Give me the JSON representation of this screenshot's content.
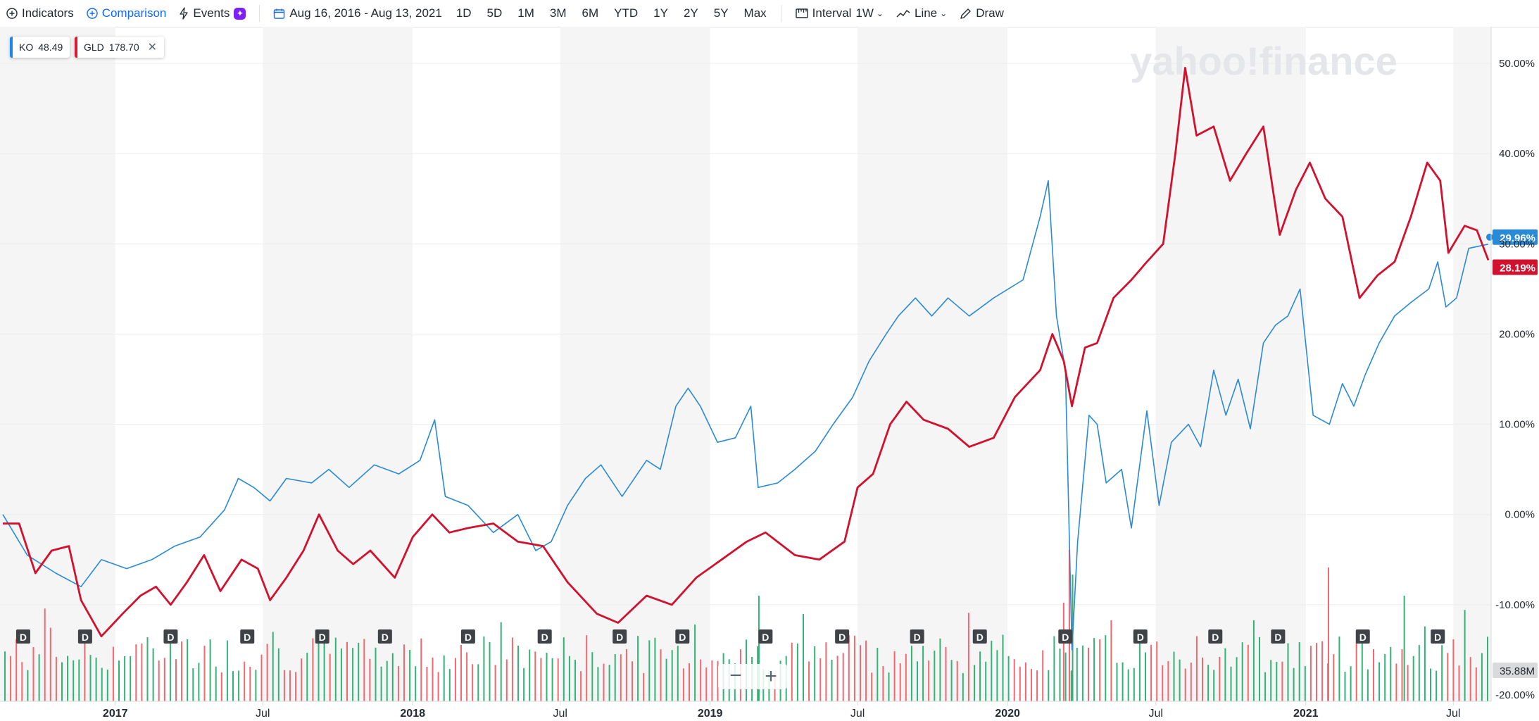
{
  "toolbar": {
    "indicators_label": "Indicators",
    "comparison_label": "Comparison",
    "events_label": "Events",
    "date_range": "Aug 16, 2016 - Aug 13, 2021",
    "ranges": [
      "1D",
      "5D",
      "1M",
      "3M",
      "6M",
      "YTD",
      "1Y",
      "2Y",
      "5Y",
      "Max"
    ],
    "interval_label": "Interval",
    "interval_value": "1W",
    "chart_type_label": "Line",
    "draw_label": "Draw"
  },
  "legend": [
    {
      "symbol": "KO",
      "value": "48.49",
      "color": "#1e88e5",
      "removable": false
    },
    {
      "symbol": "GLD",
      "value": "178.70",
      "color": "#d81b34",
      "removable": true
    }
  ],
  "watermark": "yahoo!finance",
  "colors": {
    "ko": "#2a8ad6",
    "gld": "#d0122e",
    "vol_up": "#34b277",
    "vol_down": "#ef6872",
    "band": "#f5f5f5",
    "grid": "#ececec",
    "badge": "#3f4347"
  },
  "zoom": {
    "minus": "−",
    "plus": "+"
  },
  "chart_data": {
    "type": "line",
    "x_start": "2016-08-16",
    "x_end": "2021-08-13",
    "x_tick_labels": [
      {
        "label": "2017",
        "date": "2017-01-01",
        "bold": true
      },
      {
        "label": "Jul",
        "date": "2017-07-01",
        "bold": false
      },
      {
        "label": "2018",
        "date": "2018-01-01",
        "bold": true
      },
      {
        "label": "Jul",
        "date": "2018-07-01",
        "bold": false
      },
      {
        "label": "2019",
        "date": "2019-01-01",
        "bold": true
      },
      {
        "label": "Jul",
        "date": "2019-07-01",
        "bold": false
      },
      {
        "label": "2020",
        "date": "2020-01-01",
        "bold": true
      },
      {
        "label": "Jul",
        "date": "2020-07-01",
        "bold": false
      },
      {
        "label": "2021",
        "date": "2021-01-01",
        "bold": true
      },
      {
        "label": "Jul",
        "date": "2021-07-01",
        "bold": false
      }
    ],
    "y_unit": "%",
    "ylim": [
      -20,
      50
    ],
    "y_tick_labels": [
      "50.00%",
      "40.00%",
      "30.00%",
      "20.00%",
      "10.00%",
      "0.00%",
      "-10.00%",
      "-20.00%"
    ],
    "y_ticks": [
      50,
      40,
      30,
      20,
      10,
      0,
      -10,
      -20
    ],
    "series": [
      {
        "name": "KO",
        "last_label": "29.96%",
        "last_value": 29.96,
        "points": [
          [
            "2016-08-16",
            0.0
          ],
          [
            "2016-09-15",
            -4.5
          ],
          [
            "2016-10-20",
            -6.5
          ],
          [
            "2016-11-20",
            -8.0
          ],
          [
            "2016-12-15",
            -5.0
          ],
          [
            "2017-01-15",
            -6.0
          ],
          [
            "2017-02-15",
            -5.0
          ],
          [
            "2017-03-15",
            -3.5
          ],
          [
            "2017-04-15",
            -2.5
          ],
          [
            "2017-05-15",
            0.5
          ],
          [
            "2017-06-01",
            4.0
          ],
          [
            "2017-06-20",
            3.0
          ],
          [
            "2017-07-10",
            1.5
          ],
          [
            "2017-07-30",
            4.0
          ],
          [
            "2017-08-30",
            3.5
          ],
          [
            "2017-09-20",
            5.0
          ],
          [
            "2017-10-15",
            3.0
          ],
          [
            "2017-11-15",
            5.5
          ],
          [
            "2017-12-15",
            4.5
          ],
          [
            "2018-01-10",
            6.0
          ],
          [
            "2018-01-28",
            10.5
          ],
          [
            "2018-02-10",
            2.0
          ],
          [
            "2018-03-10",
            1.0
          ],
          [
            "2018-04-10",
            -2.0
          ],
          [
            "2018-05-10",
            0.0
          ],
          [
            "2018-06-01",
            -4.0
          ],
          [
            "2018-06-20",
            -3.0
          ],
          [
            "2018-07-10",
            1.0
          ],
          [
            "2018-08-01",
            4.0
          ],
          [
            "2018-08-20",
            5.5
          ],
          [
            "2018-09-15",
            2.0
          ],
          [
            "2018-10-15",
            6.0
          ],
          [
            "2018-11-01",
            5.0
          ],
          [
            "2018-11-20",
            12.0
          ],
          [
            "2018-12-05",
            14.0
          ],
          [
            "2018-12-20",
            12.0
          ],
          [
            "2019-01-10",
            8.0
          ],
          [
            "2019-02-01",
            8.5
          ],
          [
            "2019-02-20",
            12.0
          ],
          [
            "2019-03-01",
            3.0
          ],
          [
            "2019-03-25",
            3.5
          ],
          [
            "2019-04-15",
            5.0
          ],
          [
            "2019-05-10",
            7.0
          ],
          [
            "2019-06-01",
            10.0
          ],
          [
            "2019-06-25",
            13.0
          ],
          [
            "2019-07-15",
            17.0
          ],
          [
            "2019-08-05",
            20.0
          ],
          [
            "2019-08-20",
            22.0
          ],
          [
            "2019-09-10",
            24.0
          ],
          [
            "2019-09-30",
            22.0
          ],
          [
            "2019-10-20",
            24.0
          ],
          [
            "2019-11-15",
            22.0
          ],
          [
            "2019-12-15",
            24.0
          ],
          [
            "2020-01-20",
            26.0
          ],
          [
            "2020-02-10",
            33.0
          ],
          [
            "2020-02-20",
            37.0
          ],
          [
            "2020-03-01",
            22.0
          ],
          [
            "2020-03-12",
            16.0
          ],
          [
            "2020-03-20",
            -15.0
          ],
          [
            "2020-03-27",
            -3.0
          ],
          [
            "2020-04-10",
            11.0
          ],
          [
            "2020-04-20",
            10.0
          ],
          [
            "2020-05-01",
            3.5
          ],
          [
            "2020-05-20",
            5.0
          ],
          [
            "2020-06-01",
            -1.5
          ],
          [
            "2020-06-20",
            11.5
          ],
          [
            "2020-07-05",
            1.0
          ],
          [
            "2020-07-20",
            8.0
          ],
          [
            "2020-08-10",
            10.0
          ],
          [
            "2020-08-25",
            7.5
          ],
          [
            "2020-09-10",
            16.0
          ],
          [
            "2020-09-25",
            11.0
          ],
          [
            "2020-10-10",
            15.0
          ],
          [
            "2020-10-25",
            9.5
          ],
          [
            "2020-11-10",
            19.0
          ],
          [
            "2020-11-25",
            21.0
          ],
          [
            "2020-12-10",
            22.0
          ],
          [
            "2020-12-25",
            25.0
          ],
          [
            "2021-01-10",
            11.0
          ],
          [
            "2021-01-30",
            10.0
          ],
          [
            "2021-02-15",
            14.5
          ],
          [
            "2021-03-01",
            12.0
          ],
          [
            "2021-03-15",
            15.5
          ],
          [
            "2021-04-01",
            19.0
          ],
          [
            "2021-04-20",
            22.0
          ],
          [
            "2021-05-10",
            23.5
          ],
          [
            "2021-06-01",
            25.0
          ],
          [
            "2021-06-12",
            28.0
          ],
          [
            "2021-06-22",
            23.0
          ],
          [
            "2021-07-05",
            24.0
          ],
          [
            "2021-07-20",
            29.5
          ],
          [
            "2021-08-13",
            29.96
          ]
        ]
      },
      {
        "name": "GLD",
        "last_label": "28.19%",
        "last_value": 28.19,
        "points": [
          [
            "2016-08-16",
            -1.0
          ],
          [
            "2016-09-05",
            -1.0
          ],
          [
            "2016-09-25",
            -6.5
          ],
          [
            "2016-10-15",
            -4.0
          ],
          [
            "2016-11-05",
            -3.5
          ],
          [
            "2016-11-20",
            -9.5
          ],
          [
            "2016-12-15",
            -13.5
          ],
          [
            "2017-01-10",
            -11.0
          ],
          [
            "2017-02-01",
            -9.0
          ],
          [
            "2017-02-20",
            -8.0
          ],
          [
            "2017-03-10",
            -10.0
          ],
          [
            "2017-03-30",
            -7.5
          ],
          [
            "2017-04-20",
            -4.5
          ],
          [
            "2017-05-10",
            -8.5
          ],
          [
            "2017-06-05",
            -5.0
          ],
          [
            "2017-06-25",
            -6.0
          ],
          [
            "2017-07-10",
            -9.5
          ],
          [
            "2017-07-30",
            -7.0
          ],
          [
            "2017-08-20",
            -4.0
          ],
          [
            "2017-09-08",
            0.0
          ],
          [
            "2017-10-01",
            -4.0
          ],
          [
            "2017-10-20",
            -5.5
          ],
          [
            "2017-11-10",
            -4.0
          ],
          [
            "2017-12-10",
            -7.0
          ],
          [
            "2018-01-01",
            -2.5
          ],
          [
            "2018-01-25",
            0.0
          ],
          [
            "2018-02-15",
            -2.0
          ],
          [
            "2018-03-10",
            -1.5
          ],
          [
            "2018-04-10",
            -1.0
          ],
          [
            "2018-05-10",
            -3.0
          ],
          [
            "2018-06-10",
            -3.5
          ],
          [
            "2018-07-10",
            -7.5
          ],
          [
            "2018-08-15",
            -11.0
          ],
          [
            "2018-09-10",
            -12.0
          ],
          [
            "2018-10-15",
            -9.0
          ],
          [
            "2018-11-15",
            -10.0
          ],
          [
            "2018-12-15",
            -7.0
          ],
          [
            "2019-01-15",
            -5.0
          ],
          [
            "2019-02-15",
            -3.0
          ],
          [
            "2019-03-10",
            -2.0
          ],
          [
            "2019-04-15",
            -4.5
          ],
          [
            "2019-05-15",
            -5.0
          ],
          [
            "2019-06-15",
            -3.0
          ],
          [
            "2019-07-01",
            3.0
          ],
          [
            "2019-07-20",
            4.5
          ],
          [
            "2019-08-10",
            10.0
          ],
          [
            "2019-08-30",
            12.5
          ],
          [
            "2019-09-20",
            10.5
          ],
          [
            "2019-10-20",
            9.5
          ],
          [
            "2019-11-15",
            7.5
          ],
          [
            "2019-12-15",
            8.5
          ],
          [
            "2020-01-10",
            13.0
          ],
          [
            "2020-02-10",
            16.0
          ],
          [
            "2020-02-25",
            20.0
          ],
          [
            "2020-03-10",
            17.0
          ],
          [
            "2020-03-20",
            12.0
          ],
          [
            "2020-04-05",
            18.5
          ],
          [
            "2020-04-20",
            19.0
          ],
          [
            "2020-05-10",
            24.0
          ],
          [
            "2020-06-01",
            26.0
          ],
          [
            "2020-06-20",
            28.0
          ],
          [
            "2020-07-10",
            30.0
          ],
          [
            "2020-07-25",
            40.0
          ],
          [
            "2020-08-06",
            49.5
          ],
          [
            "2020-08-20",
            42.0
          ],
          [
            "2020-09-10",
            43.0
          ],
          [
            "2020-09-30",
            37.0
          ],
          [
            "2020-10-20",
            40.0
          ],
          [
            "2020-11-10",
            43.0
          ],
          [
            "2020-11-30",
            31.0
          ],
          [
            "2020-12-20",
            36.0
          ],
          [
            "2021-01-06",
            39.0
          ],
          [
            "2021-01-25",
            35.0
          ],
          [
            "2021-02-15",
            33.0
          ],
          [
            "2021-03-08",
            24.0
          ],
          [
            "2021-03-30",
            26.5
          ],
          [
            "2021-04-20",
            28.0
          ],
          [
            "2021-05-10",
            33.0
          ],
          [
            "2021-05-30",
            39.0
          ],
          [
            "2021-06-15",
            37.0
          ],
          [
            "2021-06-25",
            29.0
          ],
          [
            "2021-07-15",
            32.0
          ],
          [
            "2021-07-30",
            31.5
          ],
          [
            "2021-08-13",
            28.19
          ]
        ]
      }
    ],
    "volume_badge": "35.88M",
    "dividend_marker": "D",
    "dividend_dates": [
      "2016-09-10",
      "2016-11-25",
      "2017-03-10",
      "2017-06-12",
      "2017-09-12",
      "2017-11-28",
      "2018-03-10",
      "2018-06-12",
      "2018-09-12",
      "2018-11-28",
      "2019-03-10",
      "2019-06-12",
      "2019-09-12",
      "2019-11-28",
      "2020-03-12",
      "2020-06-12",
      "2020-09-12",
      "2020-11-28",
      "2021-03-12",
      "2021-06-12"
    ]
  }
}
